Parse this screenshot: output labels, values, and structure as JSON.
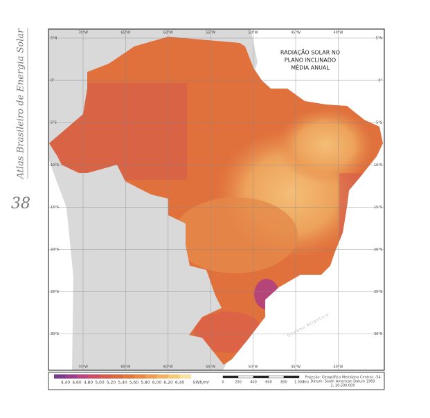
{
  "side_title": "Atlas Brasileiro de Energia Solar",
  "page_number": "38",
  "map": {
    "title": [
      "RADIAÇÃO SOLAR NO",
      "PLANO INCLINADO",
      "MÉDIA ANUAL"
    ],
    "longitudes": [
      "70°W",
      "65°W",
      "60°W",
      "55°W",
      "50°W",
      "45°W",
      "40°W"
    ],
    "latitudes": [
      "5°N",
      "0°",
      "5°S",
      "10°S",
      "15°S",
      "20°S",
      "25°S",
      "30°S"
    ],
    "ocean_label": "Oceano Atlântico"
  },
  "legend": {
    "colors": [
      "#7a3a92",
      "#9c3c8c",
      "#bb4480",
      "#d04c66",
      "#d85a4c",
      "#dd6840",
      "#e2763c",
      "#e88842",
      "#ee9c4e",
      "#f3b25e",
      "#f7c878",
      "#fbe0a2"
    ],
    "labels": [
      "4,40",
      "4,60",
      "4,80",
      "5,00",
      "5,20",
      "5,40",
      "5,60",
      "5,80",
      "6,00",
      "6,20",
      "6,40"
    ],
    "unit": "kWh/m²"
  },
  "scale": {
    "labels": [
      "0",
      "200",
      "400",
      "600",
      "800",
      "1.000"
    ],
    "unit": "Km"
  },
  "notes": [
    "Projeção: Geográfica     Meridiano Central: -54",
    "Datum: South American Datum 1969",
    "1: 10.500.000"
  ]
}
